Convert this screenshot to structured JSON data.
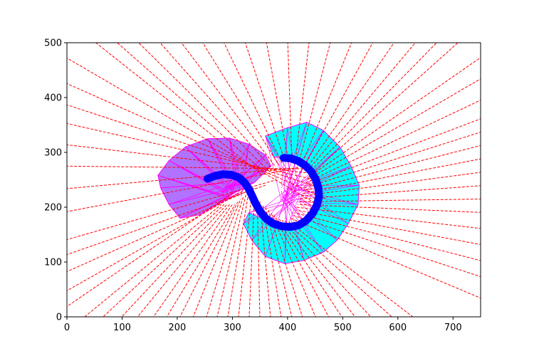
{
  "chart_data": {
    "type": "line",
    "xlim": [
      0,
      750
    ],
    "ylim": [
      0,
      500
    ],
    "x_ticks": [
      "0",
      "100",
      "200",
      "300",
      "400",
      "500",
      "600",
      "700"
    ],
    "y_ticks": [
      "0",
      "100",
      "200",
      "300",
      "400",
      "500"
    ],
    "grid": false,
    "legend": "none",
    "colors": {
      "rays": "#ff0000",
      "spiral_outline": "#0000ff",
      "fan_magenta": "#ff00ff",
      "fan_violet": "#a259ff",
      "fan_cyan": "#00ffff",
      "fan_cyan_edge": "#ff00ff"
    },
    "series": [
      {
        "role": "trajectory",
        "style": "thick-solid",
        "points": [
          [
            255,
            252
          ],
          [
            268,
            257
          ],
          [
            283,
            260
          ],
          [
            298,
            259
          ],
          [
            312,
            254
          ],
          [
            322,
            245
          ],
          [
            330,
            233
          ],
          [
            336,
            220
          ],
          [
            342,
            207
          ],
          [
            350,
            193
          ],
          [
            360,
            180
          ],
          [
            374,
            170
          ],
          [
            390,
            165
          ],
          [
            405,
            164
          ],
          [
            420,
            167
          ],
          [
            433,
            175
          ],
          [
            445,
            188
          ],
          [
            453,
            203
          ],
          [
            457,
            219
          ],
          [
            456,
            235
          ],
          [
            451,
            251
          ],
          [
            443,
            265
          ],
          [
            432,
            276
          ],
          [
            420,
            284
          ],
          [
            406,
            289
          ],
          [
            393,
            290
          ]
        ]
      },
      {
        "role": "rays",
        "style": "dashed",
        "segments": [
          [
            [
              -10,
              478
            ],
            [
              480,
              190
            ]
          ],
          [
            [
              -10,
              430
            ],
            [
              470,
              215
            ]
          ],
          [
            [
              -10,
              390
            ],
            [
              460,
              235
            ]
          ],
          [
            [
              -10,
              355
            ],
            [
              450,
              250
            ]
          ],
          [
            [
              -10,
              315
            ],
            [
              440,
              262
            ]
          ],
          [
            [
              -10,
              275
            ],
            [
              430,
              270
            ]
          ],
          [
            [
              -10,
              233
            ],
            [
              420,
              272
            ]
          ],
          [
            [
              -10,
              190
            ],
            [
              410,
              270
            ]
          ],
          [
            [
              -10,
              138
            ],
            [
              380,
              250
            ]
          ],
          [
            [
              -10,
              110
            ],
            [
              360,
              240
            ]
          ],
          [
            [
              -10,
              78
            ],
            [
              340,
              235
            ]
          ],
          [
            [
              -10,
              42
            ],
            [
              320,
              230
            ]
          ],
          [
            [
              -10,
              12
            ],
            [
              300,
              225
            ]
          ],
          [
            [
              20,
              -10
            ],
            [
              280,
              205
            ]
          ],
          [
            [
              55,
              -10
            ],
            [
              285,
              205
            ]
          ],
          [
            [
              90,
              -10
            ],
            [
              290,
              205
            ]
          ],
          [
            [
              120,
              -10
            ],
            [
              295,
              205
            ]
          ],
          [
            [
              150,
              -10
            ],
            [
              300,
              205
            ]
          ],
          [
            [
              175,
              -10
            ],
            [
              305,
              205
            ]
          ],
          [
            [
              200,
              -10
            ],
            [
              310,
              210
            ]
          ],
          [
            [
              225,
              -10
            ],
            [
              315,
              215
            ]
          ],
          [
            [
              250,
              -10
            ],
            [
              320,
              220
            ]
          ],
          [
            [
              270,
              -10
            ],
            [
              325,
              225
            ]
          ],
          [
            [
              290,
              -10
            ],
            [
              330,
              230
            ]
          ],
          [
            [
              310,
              -10
            ],
            [
              335,
              225
            ]
          ],
          [
            [
              330,
              -10
            ],
            [
              340,
              220
            ]
          ],
          [
            [
              350,
              -10
            ],
            [
              345,
              215
            ]
          ],
          [
            [
              370,
              -10
            ],
            [
              350,
              210
            ]
          ],
          [
            [
              390,
              -10
            ],
            [
              355,
              205
            ]
          ],
          [
            [
              410,
              -10
            ],
            [
              360,
              200
            ]
          ],
          [
            [
              430,
              -10
            ],
            [
              365,
              195
            ]
          ],
          [
            [
              455,
              -10
            ],
            [
              370,
              190
            ]
          ],
          [
            [
              480,
              -10
            ],
            [
              375,
              185
            ]
          ],
          [
            [
              505,
              -10
            ],
            [
              380,
              180
            ]
          ],
          [
            [
              530,
              -10
            ],
            [
              385,
              178
            ]
          ],
          [
            [
              560,
              -10
            ],
            [
              390,
              176
            ]
          ],
          [
            [
              600,
              -10
            ],
            [
              395,
              175
            ]
          ],
          [
            [
              640,
              -10
            ],
            [
              400,
              175
            ]
          ],
          [
            [
              760,
              30
            ],
            [
              405,
              180
            ]
          ],
          [
            [
              760,
              70
            ],
            [
              410,
              185
            ]
          ],
          [
            [
              760,
              100
            ],
            [
              412,
              190
            ]
          ],
          [
            [
              760,
              130
            ],
            [
              414,
              195
            ]
          ],
          [
            [
              760,
              160
            ],
            [
              416,
              200
            ]
          ],
          [
            [
              760,
              190
            ],
            [
              418,
              205
            ]
          ],
          [
            [
              760,
              215
            ],
            [
              420,
              210
            ]
          ],
          [
            [
              760,
              240
            ],
            [
              422,
              215
            ]
          ],
          [
            [
              760,
              265
            ],
            [
              424,
              220
            ]
          ],
          [
            [
              760,
              290
            ],
            [
              426,
              225
            ]
          ],
          [
            [
              760,
              315
            ],
            [
              428,
              230
            ]
          ],
          [
            [
              760,
              340
            ],
            [
              430,
              235
            ]
          ],
          [
            [
              760,
              365
            ],
            [
              432,
              240
            ]
          ],
          [
            [
              760,
              400
            ],
            [
              434,
              245
            ]
          ],
          [
            [
              760,
              440
            ],
            [
              436,
              250
            ]
          ],
          [
            [
              760,
              480
            ],
            [
              438,
              255
            ]
          ],
          [
            [
              720,
              510
            ],
            [
              440,
              258
            ]
          ],
          [
            [
              680,
              510
            ],
            [
              438,
              262
            ]
          ],
          [
            [
              640,
              510
            ],
            [
              436,
              266
            ]
          ],
          [
            [
              600,
              510
            ],
            [
              434,
              270
            ]
          ],
          [
            [
              560,
              510
            ],
            [
              430,
              274
            ]
          ],
          [
            [
              520,
              510
            ],
            [
              426,
              278
            ]
          ],
          [
            [
              480,
              510
            ],
            [
              420,
              280
            ]
          ],
          [
            [
              440,
              510
            ],
            [
              414,
              282
            ]
          ],
          [
            [
              400,
              510
            ],
            [
              408,
              283
            ]
          ],
          [
            [
              360,
              510
            ],
            [
              402,
              283
            ]
          ],
          [
            [
              320,
              510
            ],
            [
              396,
              282
            ]
          ],
          [
            [
              280,
              510
            ],
            [
              390,
              280
            ]
          ],
          [
            [
              240,
              510
            ],
            [
              384,
              277
            ]
          ],
          [
            [
              200,
              510
            ],
            [
              378,
              274
            ]
          ],
          [
            [
              160,
              510
            ],
            [
              372,
              270
            ]
          ],
          [
            [
              120,
              510
            ],
            [
              366,
              266
            ]
          ],
          [
            [
              80,
              510
            ],
            [
              360,
              262
            ]
          ],
          [
            [
              40,
              510
            ],
            [
              355,
              258
            ]
          ]
        ]
      }
    ]
  }
}
